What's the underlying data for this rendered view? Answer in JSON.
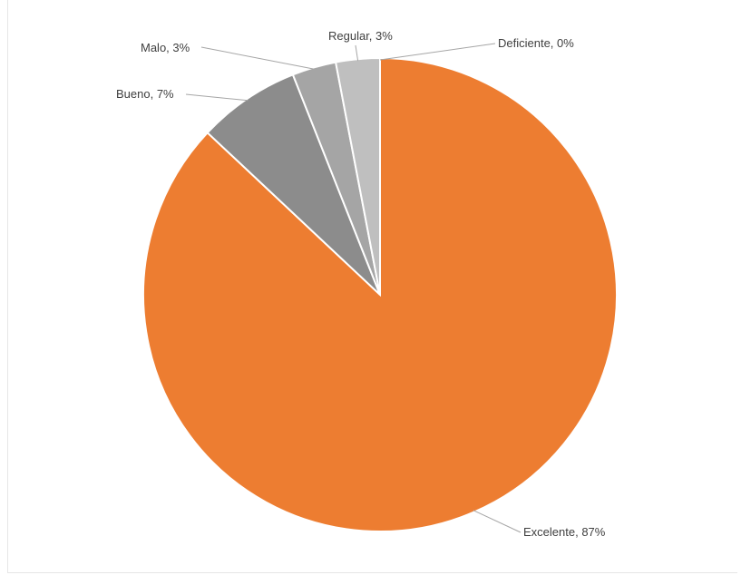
{
  "chart_data": {
    "type": "pie",
    "title": "",
    "legend": "none",
    "start_angle_deg": 0,
    "direction": "clockwise",
    "slices": [
      {
        "label": "Excelente",
        "value": 87,
        "display": "Excelente, 87%",
        "color": "#ED7D31"
      },
      {
        "label": "Bueno",
        "value": 7,
        "display": "Bueno, 7%",
        "color": "#8C8C8C"
      },
      {
        "label": "Malo",
        "value": 3,
        "display": "Malo, 3%",
        "color": "#A5A5A5"
      },
      {
        "label": "Regular",
        "value": 3,
        "display": "Regular, 3%",
        "color": "#BFBFBF"
      },
      {
        "label": "Deficiente",
        "value": 0,
        "display": "Deficiente, 0%",
        "color": "#D9D9D9"
      }
    ]
  }
}
